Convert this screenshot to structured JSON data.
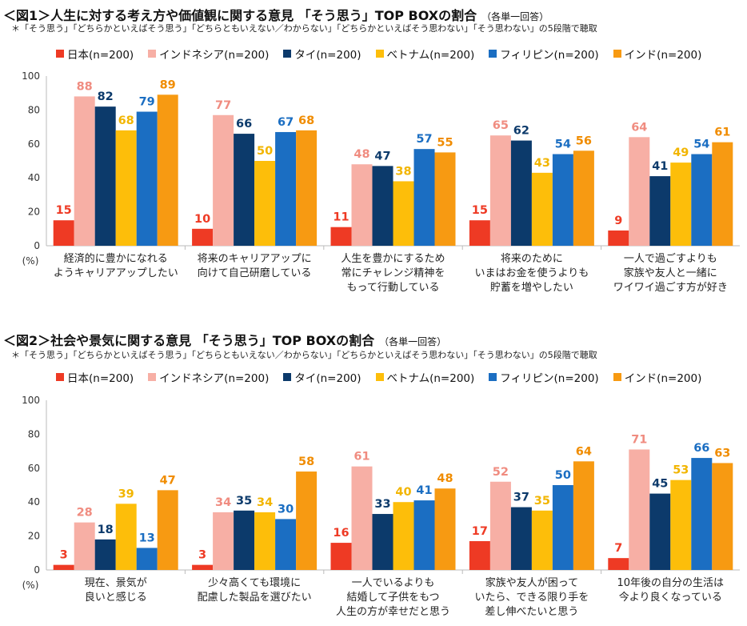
{
  "colors": [
    "#EE3A24",
    "#F7AFA5",
    "#0C3A6B",
    "#FDBE0A",
    "#1B6EC2",
    "#F79A12"
  ],
  "label_colors": [
    "#EE3A24",
    "#F08C80",
    "#0C3A6B",
    "#F2B500",
    "#1B6EC2",
    "#F08C00"
  ],
  "chart_data": [
    {
      "type": "bar",
      "title": "＜図1＞人生に対する考え方や価値観に関する意見 「そう思う」TOP BOXの割合",
      "title_suffix": "（各単一回答）",
      "note": "＊「そう思う」「どちらかといえばそう思う」「どちらともいえない／わからない」「どちらかといえばそう思わない」「そう思わない」の5段階で聴取",
      "ylabel": "(%)",
      "ylim": [
        0,
        100
      ],
      "yticks": [
        "0",
        "20",
        "40",
        "60",
        "80",
        "100"
      ],
      "categories": [
        [
          "経済的に豊かになれる",
          "ようキャリアアップしたい"
        ],
        [
          "将来のキャリアアップに",
          "向けて自己研磨している"
        ],
        [
          "人生を豊かにするため",
          "常にチャレンジ精神を",
          "もって行動している"
        ],
        [
          "将来のために",
          "いまはお金を使うよりも",
          "貯蓄を増やしたい"
        ],
        [
          "一人で過ごすよりも",
          "家族や友人と一緒に",
          "ワイワイ過ごす方が好き"
        ]
      ],
      "series": [
        {
          "name": "日本(n=200)",
          "values": [
            15,
            10,
            11,
            15,
            9
          ]
        },
        {
          "name": "インドネシア(n=200)",
          "values": [
            88,
            77,
            48,
            65,
            64
          ]
        },
        {
          "name": "タイ(n=200)",
          "values": [
            82,
            66,
            47,
            62,
            41
          ]
        },
        {
          "name": "ベトナム(n=200)",
          "values": [
            68,
            50,
            38,
            43,
            49
          ]
        },
        {
          "name": "フィリピン(n=200)",
          "values": [
            79,
            67,
            57,
            54,
            54
          ]
        },
        {
          "name": "インド(n=200)",
          "values": [
            89,
            68,
            55,
            56,
            61
          ]
        }
      ]
    },
    {
      "type": "bar",
      "title": "＜図2＞社会や景気に関する意見 「そう思う」TOP BOXの割合",
      "title_suffix": "（各単一回答）",
      "note": "＊「そう思う」「どちらかといえばそう思う」「どちらともいえない／わからない」「どちらかといえばそう思わない」「そう思わない」の5段階で聴取",
      "ylabel": "(%)",
      "ylim": [
        0,
        100
      ],
      "yticks": [
        "0",
        "20",
        "40",
        "60",
        "80",
        "100"
      ],
      "categories": [
        [
          "現在、景気が",
          "良いと感じる"
        ],
        [
          "少々高くても環境に",
          "配慮した製品を選びたい"
        ],
        [
          "一人でいるよりも",
          "結婚して子供をもつ",
          "人生の方が幸せだと思う"
        ],
        [
          "家族や友人が困って",
          "いたら、できる限り手を",
          "差し伸べたいと思う"
        ],
        [
          "10年後の自分の生活は",
          "今より良くなっている"
        ]
      ],
      "series": [
        {
          "name": "日本(n=200)",
          "values": [
            3,
            3,
            16,
            17,
            7
          ]
        },
        {
          "name": "インドネシア(n=200)",
          "values": [
            28,
            34,
            61,
            52,
            71
          ]
        },
        {
          "name": "タイ(n=200)",
          "values": [
            18,
            35,
            33,
            37,
            45
          ]
        },
        {
          "name": "ベトナム(n=200)",
          "values": [
            39,
            34,
            40,
            35,
            53
          ]
        },
        {
          "name": "フィリピン(n=200)",
          "values": [
            13,
            30,
            41,
            50,
            66
          ]
        },
        {
          "name": "インド(n=200)",
          "values": [
            47,
            58,
            48,
            64,
            63
          ]
        }
      ]
    }
  ]
}
